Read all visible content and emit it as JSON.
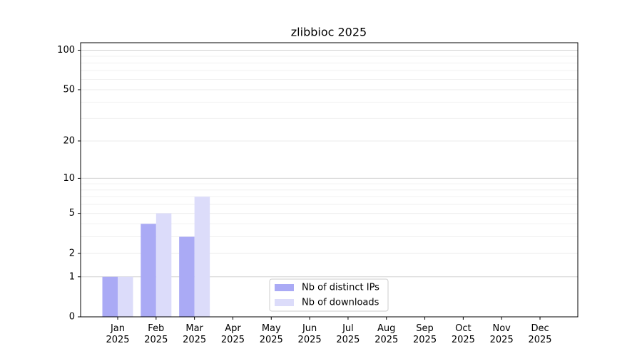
{
  "chart_data": {
    "type": "bar",
    "title": "zlibbioc 2025",
    "categories": [
      "Jan\n2025",
      "Feb\n2025",
      "Mar\n2025",
      "Apr\n2025",
      "May\n2025",
      "Jun\n2025",
      "Jul\n2025",
      "Aug\n2025",
      "Sep\n2025",
      "Oct\n2025",
      "Nov\n2025",
      "Dec\n2025"
    ],
    "series": [
      {
        "name": "Nb of distinct IPs",
        "color": "#aaaaf5",
        "values": [
          1,
          4,
          3,
          0,
          0,
          0,
          0,
          0,
          0,
          0,
          0,
          0
        ]
      },
      {
        "name": "Nb of downloads",
        "color": "#dcdcfa",
        "values": [
          1,
          5,
          7,
          0,
          0,
          0,
          0,
          0,
          0,
          0,
          0,
          0
        ]
      }
    ],
    "yscale": "log1p",
    "ylim": [
      0,
      114
    ],
    "yticks": [
      0,
      1,
      2,
      5,
      10,
      20,
      50,
      100
    ],
    "minor_yticks": [
      3,
      4,
      6,
      7,
      8,
      9,
      30,
      40,
      60,
      70,
      80,
      90
    ],
    "grid": true,
    "legend": "lower center"
  }
}
